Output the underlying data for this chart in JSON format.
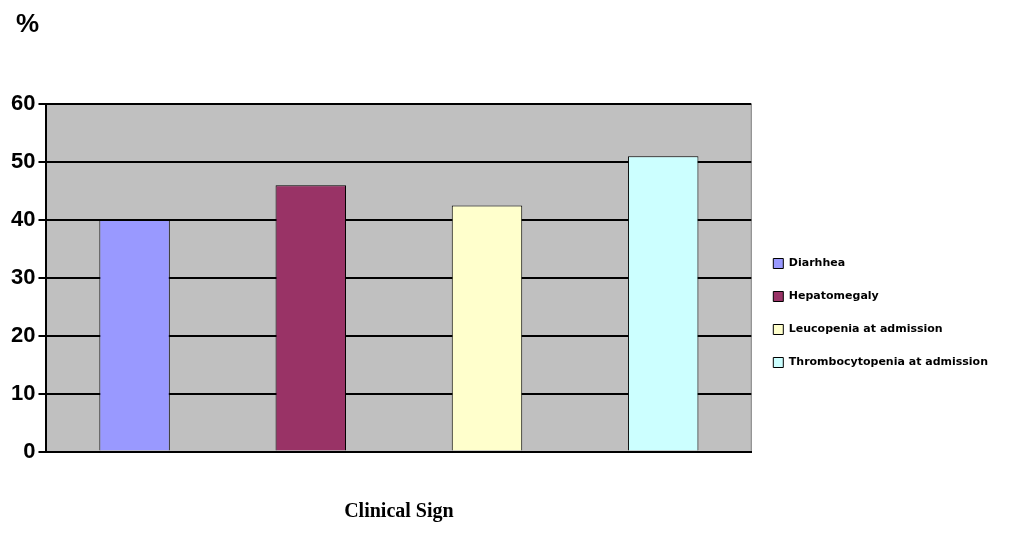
{
  "chart_data": {
    "type": "bar",
    "xlabel": "Clinical Sign",
    "ylabel": "%",
    "categories": [
      null,
      null,
      null,
      null
    ],
    "series": [
      {
        "name": "Diarhhea",
        "color": "#9999ff",
        "values": [
          40,
          null,
          null,
          null
        ]
      },
      {
        "name": "Hepatomegaly",
        "color": "#993366",
        "values": [
          null,
          46,
          null,
          null
        ]
      },
      {
        "name": "Leucopenia at admission",
        "color": "#ffffcc",
        "values": [
          null,
          null,
          42.5,
          null
        ]
      },
      {
        "name": "Thrombocytopenia at admission",
        "color": "#ccffff",
        "values": [
          null,
          null,
          null,
          51
        ]
      }
    ],
    "ylim": [
      0,
      60
    ],
    "yticks": [
      0,
      10,
      20,
      30,
      40,
      50,
      60
    ],
    "grid": "y",
    "legend": "right"
  }
}
